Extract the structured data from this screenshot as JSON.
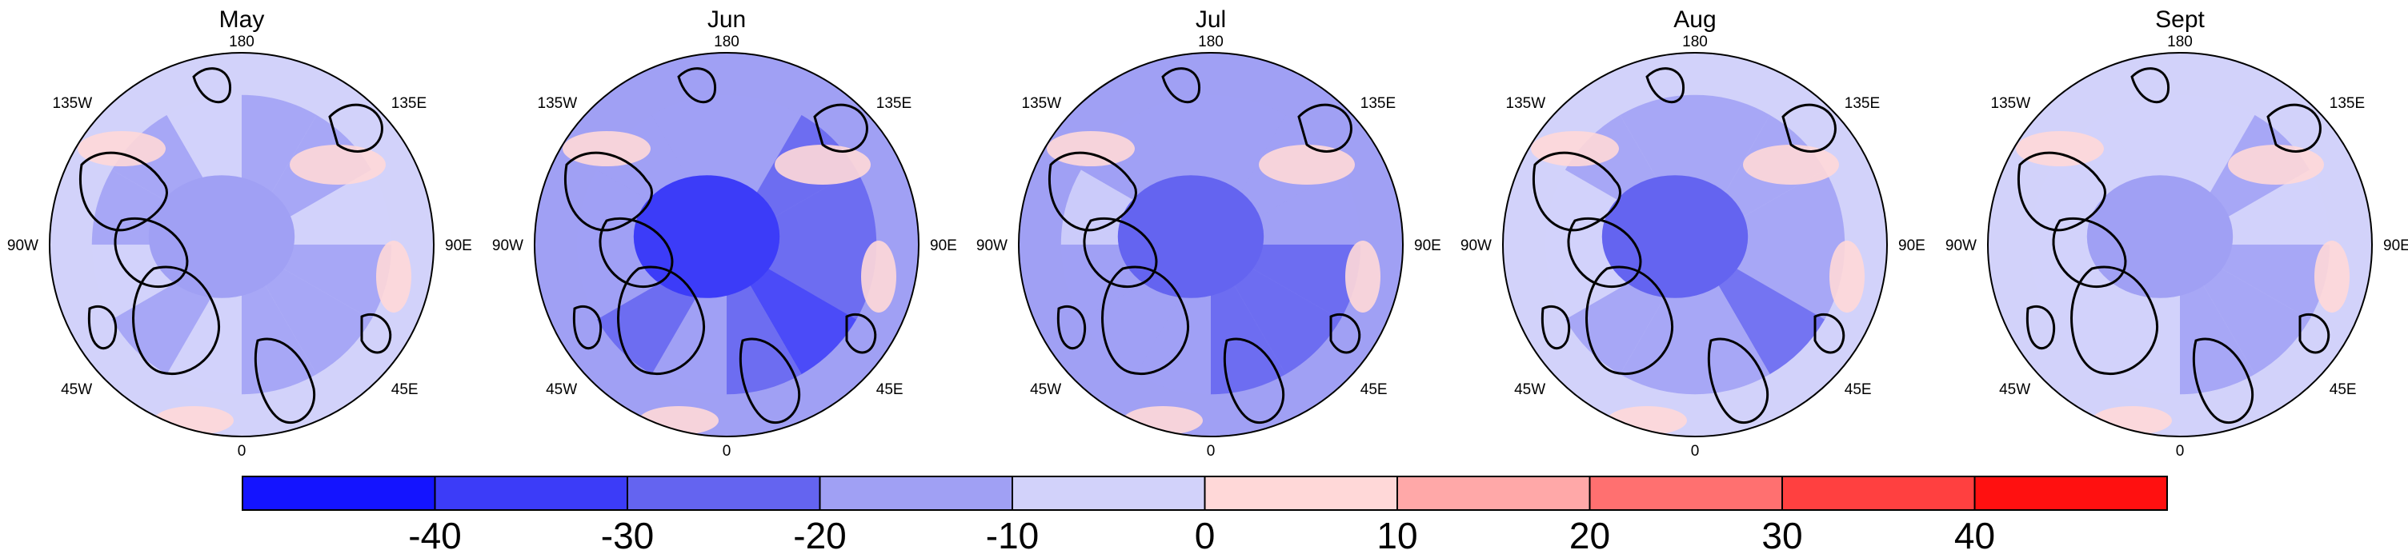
{
  "panels": [
    {
      "title": "May",
      "anomaly": [
        -12,
        -14,
        -9,
        -15,
        -18,
        -16,
        -10,
        -13,
        -8,
        -11,
        -14,
        -9
      ]
    },
    {
      "title": "Jun",
      "anomaly": [
        -20,
        -26,
        -22,
        -30,
        -34,
        -28,
        -18,
        -24,
        -16,
        -14,
        -20,
        -18
      ]
    },
    {
      "title": "Jul",
      "anomaly": [
        -16,
        -20,
        -18,
        -24,
        -28,
        -22,
        -14,
        -18,
        -12,
        -10,
        -16,
        -14
      ]
    },
    {
      "title": "Aug",
      "anomaly": [
        -14,
        -18,
        -12,
        -20,
        -24,
        -20,
        -12,
        -16,
        -10,
        -9,
        -14,
        -12
      ]
    },
    {
      "title": "Sept",
      "anomaly": [
        -9,
        -11,
        -8,
        -12,
        -15,
        -13,
        -8,
        -10,
        -6,
        -7,
        -10,
        -8
      ]
    }
  ],
  "lon_labels": {
    "top": "180",
    "top_right": "135E",
    "right": "90E",
    "bottom_right": "45E",
    "bottom": "0",
    "bottom_left": "45W",
    "left": "90W",
    "top_left": "135W"
  },
  "colorbar": {
    "ticks": [
      "-40",
      "-30",
      "-20",
      "-10",
      "0",
      "10",
      "20",
      "30",
      "40"
    ],
    "bins": [
      {
        "lo": -50,
        "hi": -40,
        "color": "#1414ff"
      },
      {
        "lo": -40,
        "hi": -30,
        "color": "#3c3cf8"
      },
      {
        "lo": -30,
        "hi": -20,
        "color": "#6464f0"
      },
      {
        "lo": -20,
        "hi": -10,
        "color": "#a0a0f4"
      },
      {
        "lo": -10,
        "hi": 0,
        "color": "#d2d2fa"
      },
      {
        "lo": 0,
        "hi": 10,
        "color": "#ffd8d8"
      },
      {
        "lo": 10,
        "hi": 20,
        "color": "#ffa8a8"
      },
      {
        "lo": 20,
        "hi": 30,
        "color": "#ff7070"
      },
      {
        "lo": 30,
        "hi": 40,
        "color": "#ff4040"
      },
      {
        "lo": 40,
        "hi": 50,
        "color": "#ff1010"
      }
    ]
  }
}
